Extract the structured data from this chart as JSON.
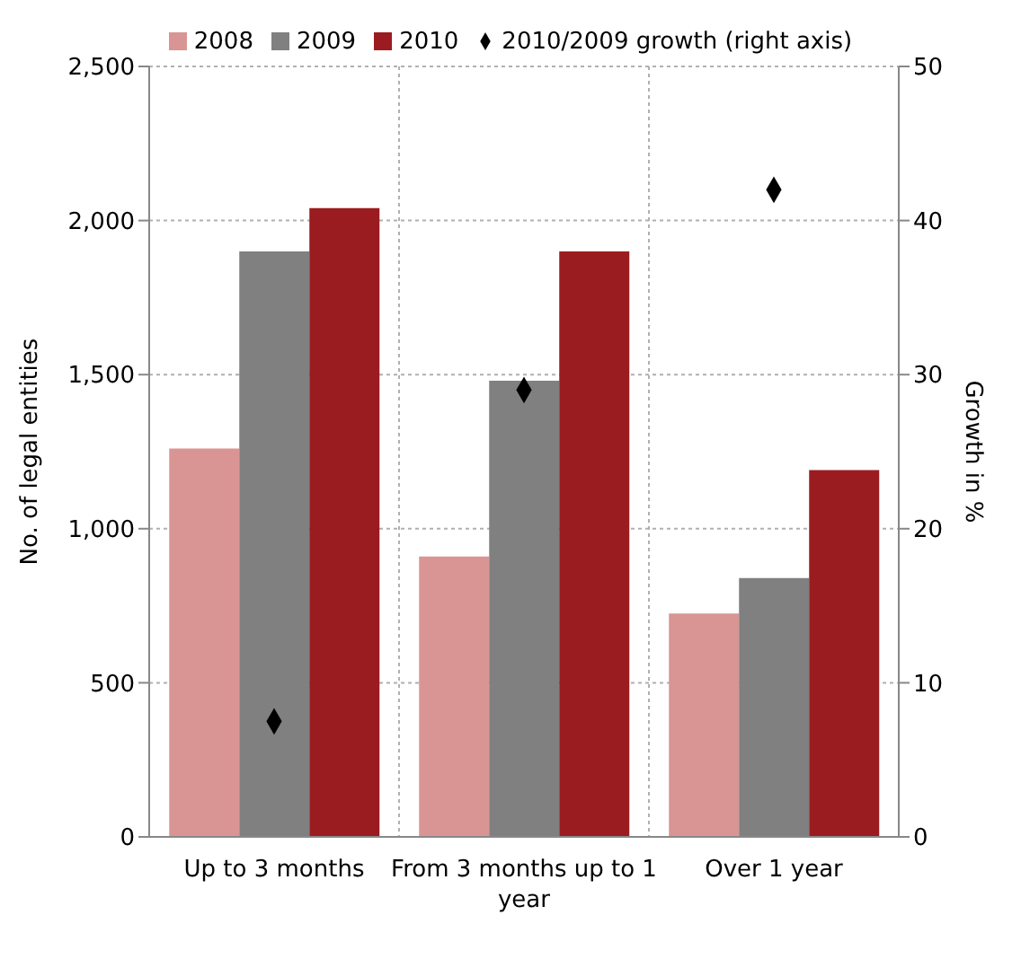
{
  "chart_data": {
    "type": "bar",
    "categories": [
      "Up to 3 months",
      "From 3 months up to 1 year",
      "Over 1 year"
    ],
    "series": [
      {
        "name": "2008",
        "color": "#d99594",
        "values": [
          1260,
          910,
          725
        ]
      },
      {
        "name": "2009",
        "color": "#808080",
        "values": [
          1900,
          1480,
          840
        ]
      },
      {
        "name": "2010",
        "color": "#9b1c20",
        "values": [
          2040,
          1900,
          1190
        ]
      },
      {
        "name": "2010/2009 growth (right axis)",
        "type": "scatter",
        "axis": "y2",
        "marker": "diamond",
        "color": "#000000",
        "values": [
          7.5,
          29,
          42
        ]
      }
    ],
    "ylabel": "No. of legal entities",
    "y2label": "Growth in %",
    "ylim": [
      0,
      2500
    ],
    "yticks": [
      {
        "value": 0,
        "label": "0"
      },
      {
        "value": 500,
        "label": "500"
      },
      {
        "value": 1000,
        "label": "1,000"
      },
      {
        "value": 1500,
        "label": "1,500"
      },
      {
        "value": 2000,
        "label": "2,000"
      },
      {
        "value": 2500,
        "label": "2,500"
      }
    ],
    "y2lim": [
      0,
      50
    ],
    "y2ticks": [
      0,
      10,
      20,
      30,
      40,
      50
    ],
    "grid": true,
    "legend": "top"
  }
}
